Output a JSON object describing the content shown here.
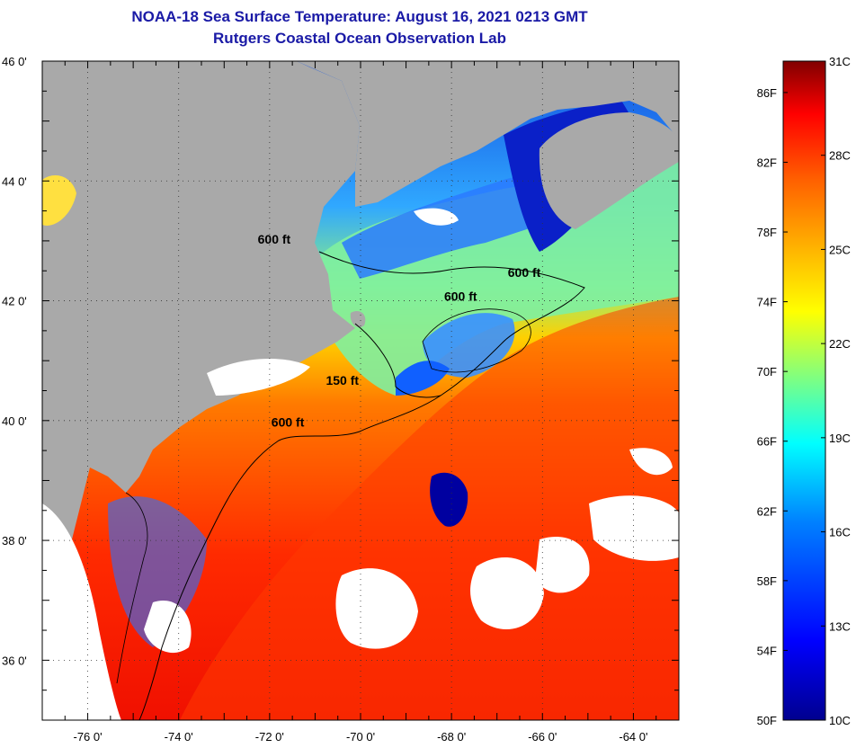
{
  "header": {
    "title": "NOAA-18 Sea Surface Temperature:  August 16, 2021 0213 GMT",
    "subtitle": "Rutgers Coastal Ocean Observation Lab"
  },
  "map": {
    "lon_range": [
      -77,
      -63
    ],
    "lat_range": [
      35,
      46
    ],
    "lon_ticks": [
      {
        "value": -76,
        "label": "-76 0'"
      },
      {
        "value": -74,
        "label": "-74 0'"
      },
      {
        "value": -72,
        "label": "-72 0'"
      },
      {
        "value": -70,
        "label": "-70 0'"
      },
      {
        "value": -68,
        "label": "-68 0'"
      },
      {
        "value": -66,
        "label": "-66 0'"
      },
      {
        "value": -64,
        "label": "-64 0'"
      }
    ],
    "lat_ticks": [
      {
        "value": 46,
        "label": "46 0'"
      },
      {
        "value": 44,
        "label": "44 0'"
      },
      {
        "value": 42,
        "label": "42 0'"
      },
      {
        "value": 40,
        "label": "40 0'"
      },
      {
        "value": 38,
        "label": "38 0'"
      },
      {
        "value": 36,
        "label": "36 0'"
      }
    ],
    "contour_labels": [
      {
        "text": "600 ft",
        "lon": -71.9,
        "lat": 42.95
      },
      {
        "text": "600 ft",
        "lon": -66.4,
        "lat": 42.4
      },
      {
        "text": "600 ft",
        "lon": -67.8,
        "lat": 42.0
      },
      {
        "text": "150 ft",
        "lon": -70.4,
        "lat": 40.6
      },
      {
        "text": "600 ft",
        "lon": -71.6,
        "lat": 39.9
      }
    ],
    "colors": {
      "land": "#a9a9a9",
      "cloud": "#ffffff"
    }
  },
  "colorbar": {
    "fahrenheit": [
      "86F",
      "82F",
      "78F",
      "74F",
      "70F",
      "66F",
      "62F",
      "58F",
      "54F",
      "50F"
    ],
    "celsius": [
      "31C",
      "28C",
      "25C",
      "22C",
      "19C",
      "16C",
      "13C",
      "10C"
    ]
  }
}
